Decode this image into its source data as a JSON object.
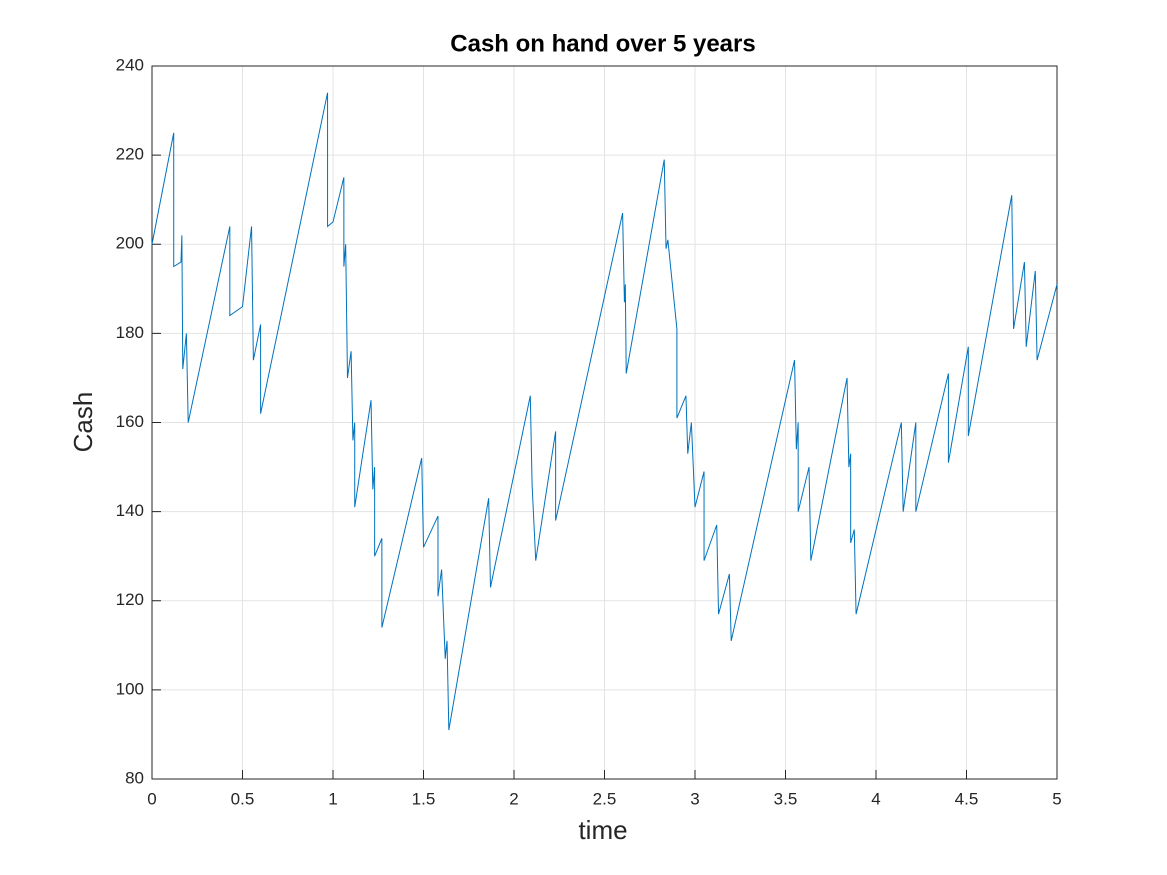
{
  "chart_data": {
    "type": "line",
    "title": "Cash on hand over 5 years",
    "xlabel": "time",
    "ylabel": "Cash",
    "x": [
      0,
      0.12,
      0.12,
      0.16,
      0.165,
      0.17,
      0.19,
      0.2,
      0.43,
      0.43,
      0.5,
      0.55,
      0.56,
      0.6,
      0.6,
      0.97,
      0.97,
      1.0,
      1.06,
      1.06,
      1.07,
      1.08,
      1.1,
      1.11,
      1.12,
      1.12,
      1.21,
      1.22,
      1.23,
      1.23,
      1.27,
      1.27,
      1.49,
      1.5,
      1.58,
      1.58,
      1.6,
      1.62,
      1.63,
      1.64,
      1.86,
      1.87,
      2.09,
      2.1,
      2.12,
      2.23,
      2.23,
      2.6,
      2.61,
      2.615,
      2.62,
      2.83,
      2.84,
      2.85,
      2.9,
      2.9,
      2.95,
      2.96,
      2.98,
      3.0,
      3.05,
      3.05,
      3.12,
      3.13,
      3.19,
      3.2,
      3.55,
      3.56,
      3.57,
      3.57,
      3.63,
      3.64,
      3.84,
      3.85,
      3.86,
      3.86,
      3.88,
      3.89,
      4.14,
      4.15,
      4.22,
      4.22,
      4.4,
      4.4,
      4.51,
      4.51,
      4.75,
      4.76,
      4.82,
      4.83,
      4.88,
      4.89,
      5
    ],
    "series": [
      {
        "name": "Cash",
        "color": "#0072bd",
        "values": [
          200,
          225,
          195,
          196,
          202,
          172,
          180,
          160,
          204,
          184,
          186,
          204,
          174,
          182,
          162,
          234,
          204,
          205,
          215,
          195,
          200,
          170,
          176,
          156,
          160,
          141,
          165,
          145,
          150,
          130,
          134,
          114,
          152,
          132,
          139,
          121,
          127,
          107,
          111,
          91,
          143,
          123,
          166,
          146,
          129,
          158,
          138,
          207,
          187,
          191,
          171,
          219,
          199,
          201,
          181,
          161,
          166,
          153,
          160,
          141,
          149,
          129,
          137,
          117,
          126,
          111,
          174,
          154,
          160,
          140,
          150,
          129,
          170,
          150,
          153,
          133,
          136,
          117,
          160,
          140,
          160,
          140,
          171,
          151,
          177,
          157,
          211,
          181,
          196,
          177,
          194,
          174,
          191
        ]
      }
    ],
    "xlim": [
      0,
      5
    ],
    "xticks": [
      0,
      0.5,
      1,
      1.5,
      2,
      2.5,
      3,
      3.5,
      4,
      4.5,
      5
    ],
    "ylim": [
      80,
      240
    ],
    "yticks": [
      80,
      100,
      120,
      140,
      160,
      180,
      200,
      220,
      240
    ],
    "grid": true
  }
}
